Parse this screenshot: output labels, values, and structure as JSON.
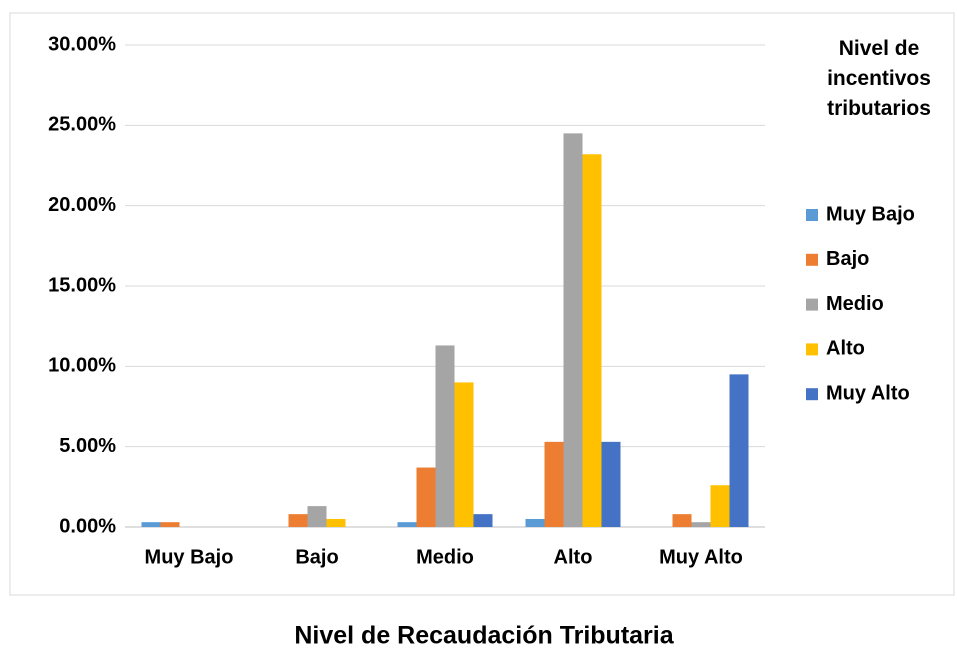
{
  "chart_data": {
    "type": "bar",
    "x_label": "Nivel de Recaudación Tributaria",
    "legend_title": "Nivel de incentivos tributarios",
    "categories": [
      "Muy Bajo",
      "Bajo",
      "Medio",
      "Alto",
      "Muy Alto"
    ],
    "series": [
      {
        "name": "Muy Bajo",
        "color": "#5b9bd5",
        "values": [
          0.3,
          0,
          0.3,
          0.5,
          0
        ]
      },
      {
        "name": "Bajo",
        "color": "#ed7d31",
        "values": [
          0.3,
          0.8,
          3.7,
          5.3,
          0.8
        ]
      },
      {
        "name": "Medio",
        "color": "#a5a5a5",
        "values": [
          0,
          1.3,
          11.3,
          24.5,
          0.3
        ]
      },
      {
        "name": "Alto",
        "color": "#ffc000",
        "values": [
          0,
          0.5,
          9.0,
          23.2,
          2.6
        ]
      },
      {
        "name": "Muy Alto",
        "color": "#4472c4",
        "values": [
          0,
          0,
          0.8,
          5.3,
          9.5
        ]
      }
    ],
    "ylim": [
      0,
      30
    ],
    "yticks": [
      {
        "value": 0,
        "label": "0.00%"
      },
      {
        "value": 5,
        "label": "5.00%"
      },
      {
        "value": 10,
        "label": "10.00%"
      },
      {
        "value": 15,
        "label": "15.00%"
      },
      {
        "value": 20,
        "label": "20.00%"
      },
      {
        "value": 25,
        "label": "25.00%"
      },
      {
        "value": 30,
        "label": "30.00%"
      }
    ],
    "grid": true,
    "legend": "right"
  }
}
